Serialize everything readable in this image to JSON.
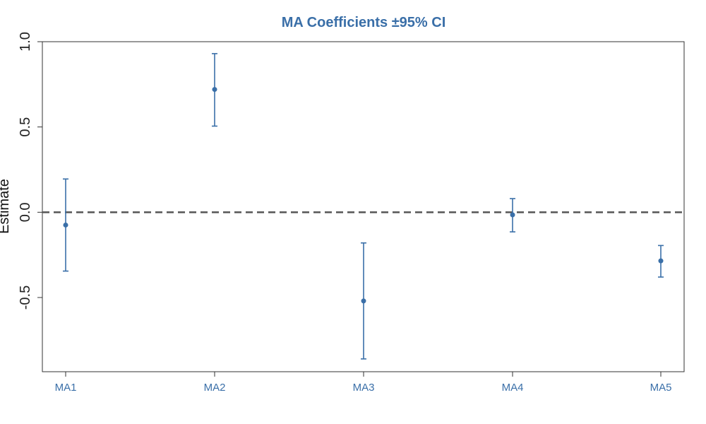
{
  "chart_data": {
    "type": "errorbar",
    "title": "MA Coefficients ±95% CI",
    "xlabel": "",
    "ylabel": "Estimate",
    "categories": [
      "MA1",
      "MA2",
      "MA3",
      "MA4",
      "MA5"
    ],
    "estimates": [
      -0.075,
      0.72,
      -0.52,
      -0.015,
      -0.285
    ],
    "lower": [
      -0.345,
      0.505,
      -0.86,
      -0.115,
      -0.38
    ],
    "upper": [
      0.195,
      0.93,
      -0.18,
      0.08,
      -0.195
    ],
    "ylim": [
      -0.935,
      1.0
    ],
    "yticks": [
      -0.5,
      0.0,
      0.5,
      1.0
    ],
    "ytick_labels": [
      "-0.5",
      "0.0",
      "0.5",
      "1.0"
    ],
    "reference_line": 0.0,
    "grid": false,
    "colors": {
      "series": "#3a6fa8",
      "title": "#3a6fa8",
      "reference_line": "#555555",
      "axis": "#333333"
    }
  }
}
